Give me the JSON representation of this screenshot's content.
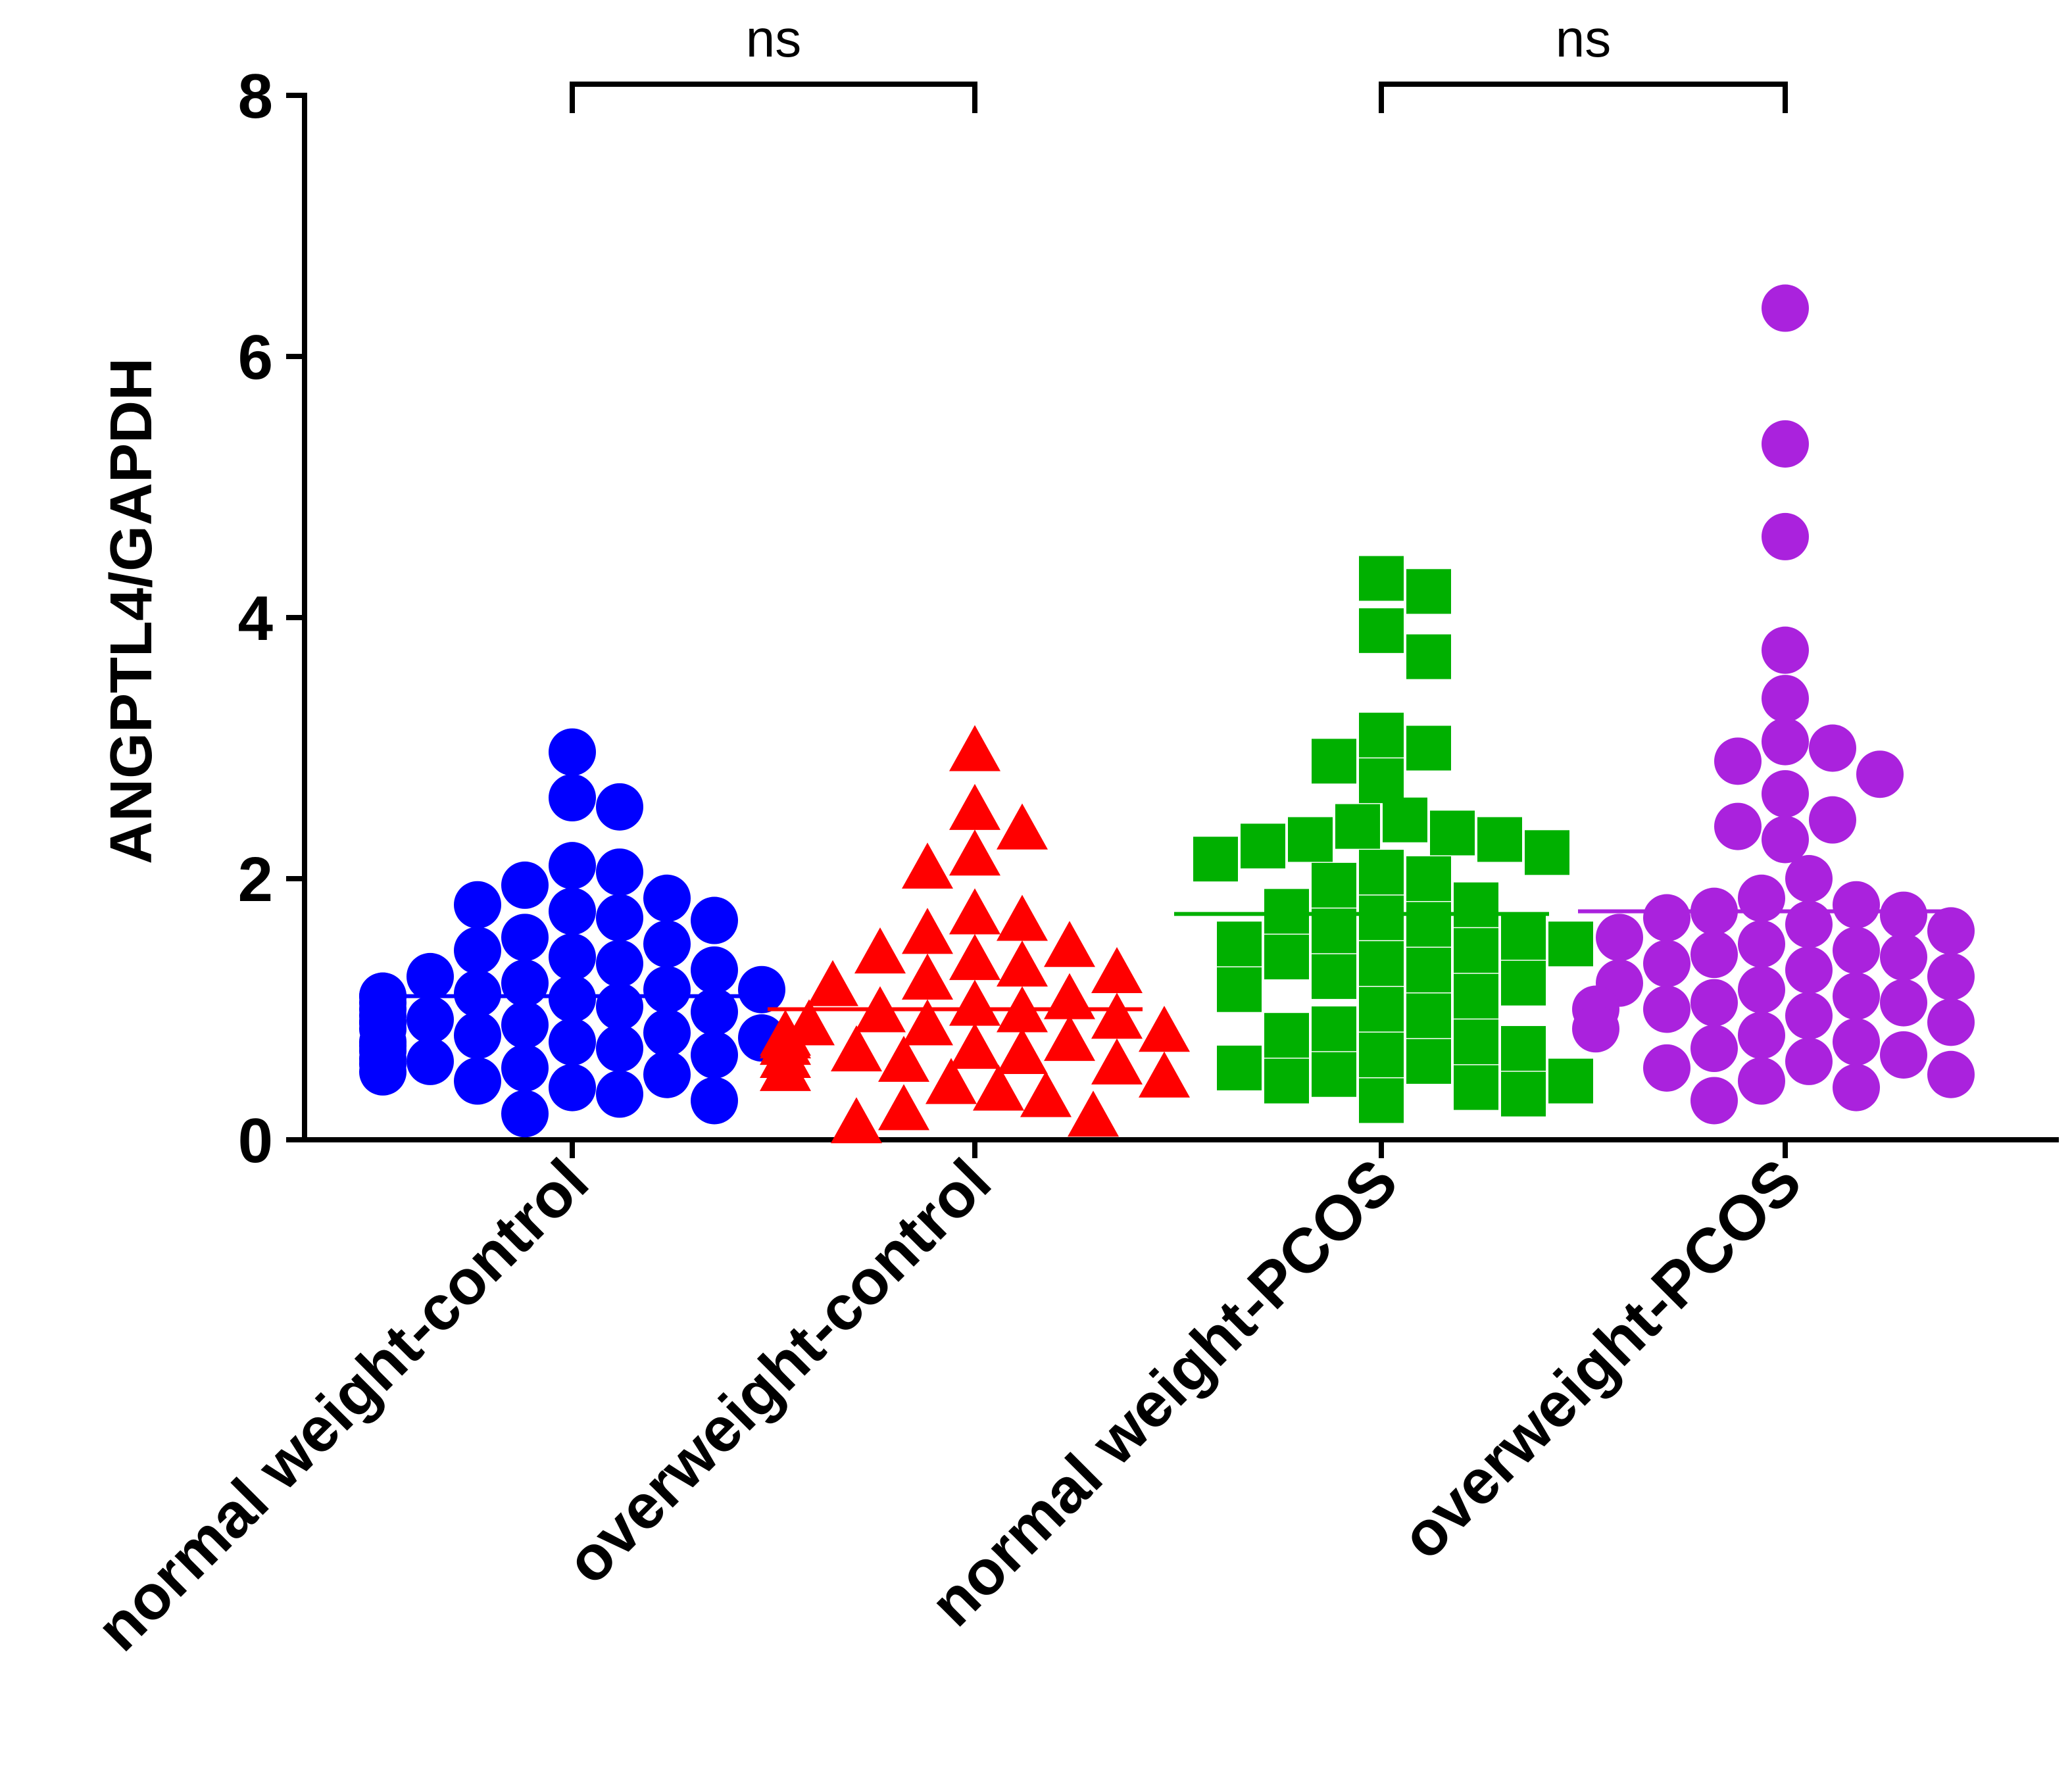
{
  "chart_data": {
    "type": "scatter",
    "title": "",
    "xlabel": "",
    "ylabel": "ANGPTL4/GAPDH",
    "ylim": [
      0,
      8
    ],
    "yticks": [
      0,
      2,
      4,
      6,
      8
    ],
    "grid": false,
    "legend": "none",
    "categories": [
      "normal weight-control",
      "overweight-control",
      "normal weight-PCOS",
      "overweight-PCOS"
    ],
    "series": [
      {
        "name": "normal weight-control",
        "color": "#0000ff",
        "marker": "circle",
        "mean": 1.1,
        "values": [
          2.97,
          2.62,
          2.55,
          2.1,
          2.05,
          1.95,
          1.85,
          1.8,
          1.75,
          1.7,
          1.68,
          1.55,
          1.5,
          1.45,
          1.4,
          1.35,
          1.3,
          1.25,
          1.2,
          1.15,
          1.15,
          1.12,
          1.1,
          1.1,
          1.08,
          1.05,
          1.02,
          1.0,
          0.98,
          0.95,
          0.92,
          0.9,
          0.9,
          0.88,
          0.85,
          0.82,
          0.8,
          0.78,
          0.75,
          0.75,
          0.72,
          0.7,
          0.68,
          0.65,
          0.62,
          0.6,
          0.58,
          0.55,
          0.52,
          0.5,
          0.45,
          0.4,
          0.35,
          0.3,
          0.2
        ]
      },
      {
        "name": "overweight-control",
        "color": "#ff0000",
        "marker": "triangle",
        "mean": 1.0,
        "values": [
          3.0,
          2.55,
          2.4,
          2.2,
          2.1,
          1.75,
          1.7,
          1.6,
          1.5,
          1.45,
          1.4,
          1.35,
          1.3,
          1.25,
          1.2,
          1.1,
          1.05,
          1.0,
          1.0,
          0.95,
          0.9,
          0.9,
          0.85,
          0.82,
          0.8,
          0.78,
          0.75,
          0.72,
          0.7,
          0.68,
          0.65,
          0.62,
          0.6,
          0.55,
          0.5,
          0.45,
          0.4,
          0.35,
          0.25,
          0.2,
          0.15
        ]
      },
      {
        "name": "normal weight-PCOS",
        "color": "#00b000",
        "marker": "square",
        "mean": 1.73,
        "values": [
          4.3,
          4.2,
          3.9,
          3.7,
          3.1,
          3.0,
          2.9,
          2.75,
          2.45,
          2.4,
          2.35,
          2.3,
          2.3,
          2.25,
          2.2,
          2.15,
          2.05,
          2.0,
          1.95,
          1.8,
          1.75,
          1.7,
          1.65,
          1.6,
          1.55,
          1.5,
          1.5,
          1.45,
          1.4,
          1.35,
          1.3,
          1.25,
          1.2,
          1.15,
          1.1,
          1.0,
          0.95,
          0.85,
          0.8,
          0.75,
          0.7,
          0.65,
          0.6,
          0.55,
          0.5,
          0.45,
          0.45,
          0.4,
          0.35,
          0.3
        ]
      },
      {
        "name": "overweight-PCOS",
        "color": "#aa22dd",
        "marker": "circle",
        "mean": 1.75,
        "values": [
          6.37,
          5.33,
          4.62,
          3.75,
          3.38,
          3.05,
          3.0,
          2.9,
          2.8,
          2.65,
          2.45,
          2.4,
          2.3,
          2.0,
          1.85,
          1.8,
          1.75,
          1.72,
          1.7,
          1.65,
          1.6,
          1.55,
          1.5,
          1.45,
          1.42,
          1.4,
          1.35,
          1.3,
          1.25,
          1.2,
          1.15,
          1.1,
          1.05,
          1.05,
          1.0,
          1.0,
          0.95,
          0.9,
          0.85,
          0.8,
          0.75,
          0.7,
          0.65,
          0.6,
          0.55,
          0.5,
          0.45,
          0.4,
          0.3
        ]
      }
    ],
    "annotations": [
      {
        "type": "bracket",
        "from": 0,
        "to": 1,
        "text": "ns"
      },
      {
        "type": "bracket",
        "from": 2,
        "to": 3,
        "text": "ns"
      }
    ]
  }
}
